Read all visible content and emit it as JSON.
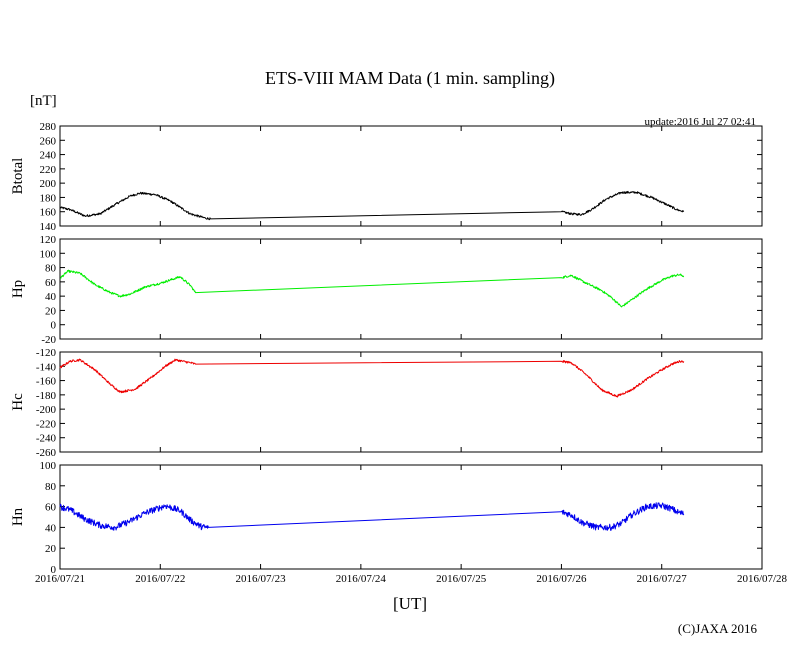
{
  "chart_data": {
    "type": "line",
    "title": "ETS-VIII MAM Data (1 min. sampling)",
    "unit_label": "[nT]",
    "update_text": "update:2016 Jul 27 02:41",
    "copyright": "(C)JAXA 2016",
    "xlabel": "[UT]",
    "x_tick_labels": [
      "2016/07/21",
      "2016/07/22",
      "2016/07/23",
      "2016/07/24",
      "2016/07/25",
      "2016/07/26",
      "2016/07/27",
      "2016/07/28"
    ],
    "xlim": [
      0,
      7
    ],
    "panels": [
      {
        "name": "btotal",
        "ylabel": "Btotal",
        "color": "#000000",
        "ylim": [
          140,
          280
        ],
        "yticks": [
          140,
          160,
          180,
          200,
          220,
          240,
          260,
          280
        ],
        "noise": 1.5,
        "points": [
          [
            0.0,
            166
          ],
          [
            0.1,
            163
          ],
          [
            0.25,
            154
          ],
          [
            0.4,
            157
          ],
          [
            0.55,
            170
          ],
          [
            0.7,
            182
          ],
          [
            0.8,
            186
          ],
          [
            0.95,
            184
          ],
          [
            1.1,
            175
          ],
          [
            1.2,
            166
          ],
          [
            1.3,
            157
          ],
          [
            1.45,
            151
          ],
          [
            1.5,
            150
          ],
          [
            5.0,
            160
          ],
          [
            5.1,
            157
          ],
          [
            5.2,
            156
          ],
          [
            5.3,
            163
          ],
          [
            5.45,
            178
          ],
          [
            5.6,
            187
          ],
          [
            5.75,
            187
          ],
          [
            5.9,
            180
          ],
          [
            6.05,
            170
          ],
          [
            6.15,
            163
          ],
          [
            6.22,
            160
          ]
        ]
      },
      {
        "name": "hp",
        "ylabel": "Hp",
        "color": "#00ee00",
        "ylim": [
          -20,
          120
        ],
        "yticks": [
          -20,
          0,
          20,
          40,
          60,
          80,
          100,
          120
        ],
        "noise": 1.5,
        "points": [
          [
            0.0,
            65
          ],
          [
            0.08,
            75
          ],
          [
            0.2,
            72
          ],
          [
            0.35,
            56
          ],
          [
            0.5,
            45
          ],
          [
            0.6,
            40
          ],
          [
            0.7,
            43
          ],
          [
            0.85,
            53
          ],
          [
            1.0,
            58
          ],
          [
            1.15,
            65
          ],
          [
            1.2,
            67
          ],
          [
            1.3,
            55
          ],
          [
            1.35,
            45
          ],
          [
            5.0,
            66
          ],
          [
            5.1,
            69
          ],
          [
            5.25,
            58
          ],
          [
            5.4,
            48
          ],
          [
            5.5,
            38
          ],
          [
            5.6,
            25
          ],
          [
            5.7,
            35
          ],
          [
            5.85,
            50
          ],
          [
            6.0,
            62
          ],
          [
            6.1,
            68
          ],
          [
            6.18,
            70
          ],
          [
            6.22,
            68
          ]
        ]
      },
      {
        "name": "hc",
        "ylabel": "Hc",
        "color": "#ee0000",
        "ylim": [
          -260,
          -120
        ],
        "yticks": [
          -260,
          -240,
          -220,
          -200,
          -180,
          -160,
          -140,
          -120
        ],
        "noise": 1.5,
        "points": [
          [
            0.0,
            -142
          ],
          [
            0.1,
            -133
          ],
          [
            0.2,
            -131
          ],
          [
            0.35,
            -145
          ],
          [
            0.5,
            -165
          ],
          [
            0.6,
            -176
          ],
          [
            0.75,
            -172
          ],
          [
            0.9,
            -157
          ],
          [
            1.05,
            -140
          ],
          [
            1.15,
            -131
          ],
          [
            1.3,
            -135
          ],
          [
            1.35,
            -137
          ],
          [
            5.0,
            -133
          ],
          [
            5.1,
            -135
          ],
          [
            5.25,
            -152
          ],
          [
            5.4,
            -173
          ],
          [
            5.55,
            -182
          ],
          [
            5.7,
            -173
          ],
          [
            5.85,
            -158
          ],
          [
            6.0,
            -145
          ],
          [
            6.1,
            -137
          ],
          [
            6.18,
            -133
          ],
          [
            6.22,
            -133
          ]
        ]
      },
      {
        "name": "hn",
        "ylabel": "Hn",
        "color": "#0000ee",
        "ylim": [
          0,
          100
        ],
        "yticks": [
          0,
          20,
          40,
          60,
          80,
          100
        ],
        "noise": 3,
        "points": [
          [
            0.0,
            60
          ],
          [
            0.1,
            57
          ],
          [
            0.25,
            48
          ],
          [
            0.4,
            42
          ],
          [
            0.55,
            40
          ],
          [
            0.7,
            46
          ],
          [
            0.85,
            54
          ],
          [
            1.0,
            59
          ],
          [
            1.05,
            61
          ],
          [
            1.2,
            56
          ],
          [
            1.3,
            47
          ],
          [
            1.4,
            41
          ],
          [
            1.45,
            40
          ],
          [
            1.48,
            40
          ],
          [
            5.0,
            55
          ],
          [
            5.1,
            52
          ],
          [
            5.2,
            45
          ],
          [
            5.35,
            40
          ],
          [
            5.5,
            40
          ],
          [
            5.6,
            44
          ],
          [
            5.7,
            52
          ],
          [
            5.85,
            60
          ],
          [
            6.0,
            61
          ],
          [
            6.1,
            58
          ],
          [
            6.15,
            55
          ],
          [
            6.22,
            53
          ]
        ]
      }
    ]
  }
}
